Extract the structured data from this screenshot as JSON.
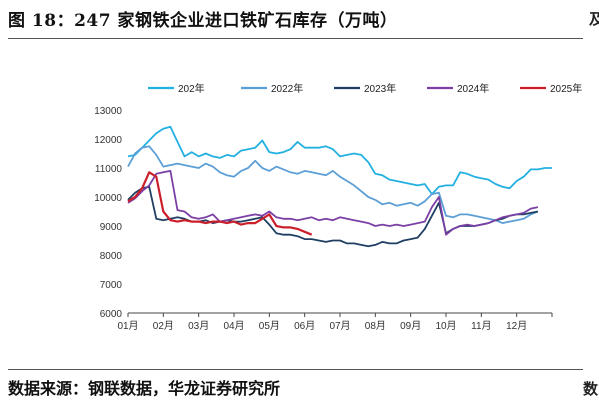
{
  "figure": {
    "title": "图 18：247 家钢铁企业进口铁矿石库存（万吨）",
    "source": "数据来源：钢联数据，华龙证券研究所",
    "edge_glyphs": {
      "top_right": "及",
      "bottom_right": "数"
    }
  },
  "colors": {
    "2021": "#22b0e0",
    "2022": "#5c9fd6",
    "2023": "#1f3f63",
    "2024": "#7b3fa6",
    "2025": "#cc1f2b"
  },
  "chart_data": {
    "type": "line",
    "title": "",
    "xlabel": "",
    "ylabel": "",
    "ylim": [
      6000,
      13000
    ],
    "yticks": [
      6000,
      7000,
      8000,
      9000,
      10000,
      11000,
      12000,
      13000
    ],
    "xlim": [
      1,
      13
    ],
    "xticks": [
      "01月",
      "02月",
      "03月",
      "04月",
      "05月",
      "06月",
      "07月",
      "08月",
      "09月",
      "10月",
      "11月",
      "12月"
    ],
    "grid": false,
    "legend_position": "top",
    "series": [
      {
        "name": "202年",
        "color_key": "2021",
        "x": [
          1.0,
          1.2,
          1.4,
          1.6,
          1.8,
          2.0,
          2.2,
          2.4,
          2.6,
          2.8,
          3.0,
          3.2,
          3.4,
          3.6,
          3.8,
          4.0,
          4.2,
          4.4,
          4.6,
          4.8,
          5.0,
          5.2,
          5.4,
          5.6,
          5.8,
          6.0,
          6.2,
          6.4,
          6.6,
          6.8,
          7.0,
          7.2,
          7.4,
          7.6,
          7.8,
          8.0,
          8.2,
          8.4,
          8.6,
          8.8,
          9.0,
          9.2,
          9.4,
          9.6,
          9.8,
          10.0,
          10.2,
          10.4,
          10.6,
          10.8,
          11.0,
          11.2,
          11.4,
          11.6,
          11.8,
          12.0,
          12.2,
          12.4,
          12.6,
          12.8,
          13.0
        ],
        "values": [
          11400,
          11450,
          11700,
          11950,
          12200,
          12350,
          12420,
          11900,
          11400,
          11550,
          11400,
          11500,
          11400,
          11350,
          11450,
          11400,
          11600,
          11650,
          11700,
          11950,
          11550,
          11500,
          11550,
          11650,
          11900,
          11700,
          11700,
          11700,
          11750,
          11650,
          11400,
          11450,
          11500,
          11450,
          11200,
          10800,
          10750,
          10600,
          10550,
          10500,
          10450,
          10400,
          10450,
          10100,
          10350,
          10400,
          10400,
          10850,
          10800,
          10700,
          10650,
          10600,
          10450,
          10350,
          10300,
          10550,
          10700,
          10950,
          10950,
          11000,
          11000
        ]
      },
      {
        "name": "2022年",
        "color_key": "2022",
        "x": [
          1.0,
          1.2,
          1.4,
          1.6,
          1.8,
          2.0,
          2.2,
          2.4,
          2.6,
          2.8,
          3.0,
          3.2,
          3.4,
          3.6,
          3.8,
          4.0,
          4.2,
          4.4,
          4.6,
          4.8,
          5.0,
          5.2,
          5.4,
          5.6,
          5.8,
          6.0,
          6.2,
          6.4,
          6.6,
          6.8,
          7.0,
          7.2,
          7.4,
          7.6,
          7.8,
          8.0,
          8.2,
          8.4,
          8.6,
          8.8,
          9.0,
          9.2,
          9.4,
          9.6,
          9.8,
          10.0,
          10.2,
          10.4,
          10.6,
          10.8,
          11.0,
          11.2,
          11.4,
          11.6,
          11.8,
          12.0,
          12.2,
          12.4,
          12.6
        ],
        "values": [
          11050,
          11500,
          11700,
          11750,
          11450,
          11050,
          11100,
          11150,
          11100,
          11050,
          11000,
          11150,
          11050,
          10850,
          10750,
          10700,
          10900,
          11000,
          11250,
          11000,
          10900,
          11050,
          10950,
          10850,
          10800,
          10900,
          10850,
          10800,
          10750,
          10900,
          10700,
          10550,
          10400,
          10200,
          10000,
          9900,
          9750,
          9800,
          9700,
          9750,
          9800,
          9700,
          9850,
          10100,
          10150,
          9350,
          9300,
          9400,
          9400,
          9350,
          9300,
          9250,
          9200,
          9100,
          9150,
          9200,
          9250,
          9400,
          9500
        ]
      },
      {
        "name": "2023年",
        "color_key": "2023",
        "x": [
          1.0,
          1.2,
          1.4,
          1.6,
          1.8,
          2.0,
          2.2,
          2.4,
          2.6,
          2.8,
          3.0,
          3.2,
          3.4,
          3.6,
          3.8,
          4.0,
          4.2,
          4.4,
          4.6,
          4.8,
          5.0,
          5.2,
          5.4,
          5.6,
          5.8,
          6.0,
          6.2,
          6.4,
          6.6,
          6.8,
          7.0,
          7.2,
          7.4,
          7.6,
          7.8,
          8.0,
          8.2,
          8.4,
          8.6,
          8.8,
          9.0,
          9.2,
          9.4,
          9.6,
          9.8,
          10.0,
          10.2,
          10.4,
          10.6,
          10.8,
          11.0,
          11.2,
          11.4,
          11.6,
          11.8,
          12.0,
          12.2,
          12.4,
          12.6
        ],
        "values": [
          9900,
          10150,
          10300,
          10350,
          9250,
          9200,
          9250,
          9300,
          9250,
          9150,
          9150,
          9200,
          9100,
          9150,
          9200,
          9150,
          9150,
          9200,
          9250,
          9300,
          9050,
          8750,
          8700,
          8700,
          8650,
          8550,
          8550,
          8500,
          8450,
          8500,
          8500,
          8400,
          8400,
          8350,
          8300,
          8350,
          8450,
          8400,
          8400,
          8500,
          8550,
          8600,
          8900,
          9350,
          9800,
          8750,
          8900,
          9000,
          9000,
          9000,
          9050,
          9100,
          9200,
          9250,
          9350,
          9400,
          9400,
          9450,
          9500
        ]
      },
      {
        "name": "2024年",
        "color_key": "2024",
        "x": [
          1.0,
          1.2,
          1.4,
          1.6,
          1.8,
          2.0,
          2.2,
          2.4,
          2.6,
          2.8,
          3.0,
          3.2,
          3.4,
          3.6,
          3.8,
          4.0,
          4.2,
          4.4,
          4.6,
          4.8,
          5.0,
          5.2,
          5.4,
          5.6,
          5.8,
          6.0,
          6.2,
          6.4,
          6.6,
          6.8,
          7.0,
          7.2,
          7.4,
          7.6,
          7.8,
          8.0,
          8.2,
          8.4,
          8.6,
          8.8,
          9.0,
          9.2,
          9.4,
          9.6,
          9.8,
          10.0,
          10.2,
          10.4,
          10.6,
          10.8,
          11.0,
          11.2,
          11.4,
          11.6,
          11.8,
          12.0,
          12.2,
          12.4,
          12.6
        ],
        "values": [
          9800,
          9950,
          10200,
          10400,
          10800,
          10850,
          10900,
          9550,
          9500,
          9300,
          9250,
          9300,
          9400,
          9150,
          9200,
          9250,
          9300,
          9350,
          9400,
          9350,
          9500,
          9300,
          9250,
          9250,
          9200,
          9250,
          9300,
          9200,
          9250,
          9200,
          9300,
          9250,
          9200,
          9150,
          9100,
          9000,
          9050,
          9000,
          9050,
          9000,
          9050,
          9100,
          9150,
          9650,
          10000,
          8700,
          8900,
          9000,
          9050,
          9000,
          9050,
          9100,
          9200,
          9300,
          9350,
          9400,
          9450,
          9600,
          9650
        ]
      },
      {
        "name": "2025年",
        "color_key": "2025",
        "x": [
          1.0,
          1.2,
          1.4,
          1.6,
          1.8,
          2.0,
          2.2,
          2.4,
          2.6,
          2.8,
          3.0,
          3.2,
          3.4,
          3.6,
          3.8,
          4.0,
          4.2,
          4.4,
          4.6,
          4.8,
          5.0,
          5.2,
          5.4,
          5.6,
          5.8,
          6.0,
          6.2
        ],
        "values": [
          9850,
          10000,
          10300,
          10850,
          10700,
          9500,
          9200,
          9150,
          9200,
          9150,
          9150,
          9100,
          9150,
          9150,
          9100,
          9150,
          9050,
          9100,
          9100,
          9250,
          9400,
          9000,
          8950,
          8950,
          8900,
          8800,
          8700
        ]
      }
    ]
  }
}
